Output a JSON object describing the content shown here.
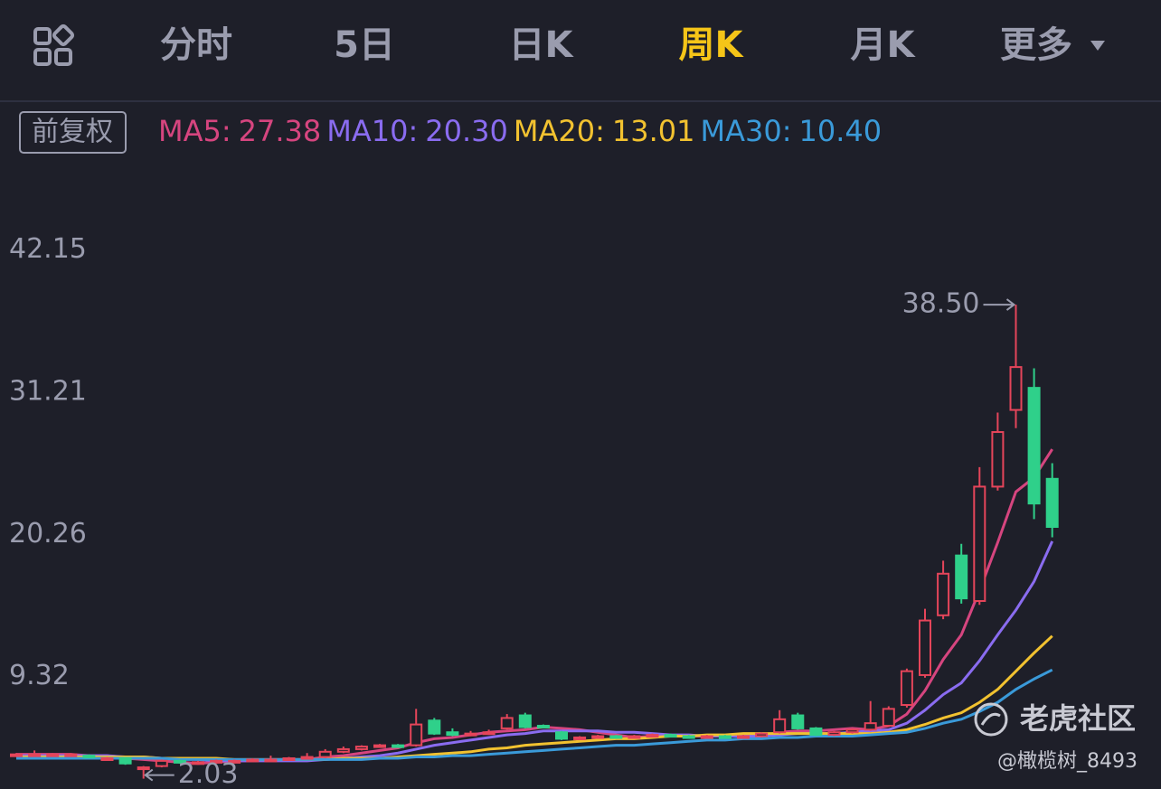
{
  "tabs": [
    "分时",
    "5日",
    "日K",
    "周K",
    "月K",
    "更多"
  ],
  "active_tab": 3,
  "badge": "前复权",
  "watermark": "老虎社区",
  "credit": "@橄榄树_8493",
  "chart_data": {
    "type": "candlestick",
    "ylim": [
      2,
      44
    ],
    "yticks": [
      9.32,
      20.26,
      31.21,
      42.15
    ],
    "up_color": "#e5455a",
    "down_color": "#2fd08a",
    "open": [
      3.8,
      3.9,
      3.9,
      3.8,
      3.8,
      3.6,
      3.6,
      2.8,
      3.0,
      3.4,
      3.3,
      3.3,
      3.4,
      3.4,
      3.5,
      3.5,
      3.6,
      3.7,
      4.1,
      4.3,
      4.5,
      4.6,
      4.6,
      6.5,
      5.6,
      5.4,
      5.5,
      5.9,
      6.9,
      6.1,
      5.6,
      5.1,
      5.2,
      5.3,
      5.2,
      5.3,
      5.4,
      5.3,
      5.2,
      5.3,
      5.2,
      5.3,
      5.6,
      6.9,
      5.9,
      5.4,
      5.6,
      5.8,
      6.1,
      7.7,
      10.0,
      14.6,
      19.2,
      15.7,
      24.5,
      30.4,
      32.1,
      25.1
    ],
    "high": [
      4.0,
      4.2,
      4.0,
      4.0,
      3.9,
      3.7,
      3.7,
      3.0,
      3.5,
      3.5,
      3.4,
      3.5,
      3.5,
      3.6,
      3.8,
      3.7,
      4.0,
      4.3,
      4.5,
      4.6,
      4.7,
      4.7,
      7.4,
      6.7,
      5.9,
      5.7,
      5.8,
      7.0,
      7.1,
      6.2,
      5.7,
      5.3,
      5.4,
      5.4,
      5.4,
      5.5,
      5.5,
      5.4,
      5.4,
      5.4,
      5.4,
      5.6,
      7.3,
      7.1,
      6.0,
      5.7,
      5.9,
      8.0,
      7.6,
      10.5,
      15.1,
      18.8,
      20.1,
      26.0,
      30.2,
      38.5,
      33.6,
      26.3
    ],
    "low": [
      3.7,
      3.8,
      3.8,
      3.7,
      3.6,
      3.5,
      3.1,
      2.03,
      2.9,
      3.2,
      3.2,
      3.2,
      3.3,
      3.3,
      3.4,
      3.4,
      3.5,
      3.6,
      4.0,
      4.2,
      4.4,
      4.4,
      4.5,
      5.4,
      5.3,
      5.3,
      5.4,
      5.8,
      5.9,
      5.9,
      5.0,
      5.0,
      5.1,
      5.1,
      5.1,
      5.2,
      5.2,
      5.1,
      5.1,
      5.1,
      5.1,
      5.2,
      5.5,
      5.8,
      5.3,
      5.3,
      5.5,
      5.7,
      6.0,
      7.5,
      9.8,
      14.3,
      15.5,
      15.4,
      24.2,
      29.0,
      22.0,
      20.6
    ],
    "close": [
      3.9,
      3.9,
      3.9,
      3.9,
      3.7,
      3.6,
      3.2,
      2.9,
      3.4,
      3.3,
      3.3,
      3.4,
      3.4,
      3.5,
      3.5,
      3.6,
      3.7,
      4.1,
      4.3,
      4.5,
      4.6,
      4.5,
      6.2,
      5.5,
      5.4,
      5.5,
      5.6,
      6.7,
      6.0,
      6.0,
      5.1,
      5.2,
      5.3,
      5.2,
      5.3,
      5.4,
      5.3,
      5.2,
      5.3,
      5.2,
      5.3,
      5.5,
      6.6,
      5.9,
      5.4,
      5.6,
      5.8,
      6.3,
      7.4,
      10.3,
      14.2,
      17.8,
      15.9,
      24.5,
      28.7,
      33.7,
      23.2,
      21.4
    ],
    "max_label": "38.50",
    "min_label": "2.03",
    "series": [
      {
        "name": "MA5:",
        "value_label": "27.38",
        "color": "#d6457f",
        "values": [
          3.9,
          3.9,
          3.9,
          3.9,
          3.8,
          3.8,
          3.6,
          3.5,
          3.4,
          3.3,
          3.2,
          3.3,
          3.4,
          3.4,
          3.5,
          3.5,
          3.5,
          3.7,
          3.8,
          4.0,
          4.2,
          4.4,
          4.8,
          5.1,
          5.2,
          5.4,
          5.6,
          5.7,
          5.8,
          6.0,
          5.9,
          5.8,
          5.6,
          5.4,
          5.2,
          5.3,
          5.3,
          5.3,
          5.3,
          5.3,
          5.3,
          5.3,
          5.6,
          5.7,
          5.7,
          5.8,
          5.9,
          5.8,
          6.1,
          7.0,
          8.8,
          11.2,
          13.1,
          16.5,
          20.2,
          24.1,
          25.2,
          27.38
        ]
      },
      {
        "name": "MA10:",
        "value_label": "20.30",
        "color": "#8a6cf0",
        "values": [
          3.8,
          3.8,
          3.8,
          3.8,
          3.8,
          3.8,
          3.7,
          3.7,
          3.6,
          3.6,
          3.5,
          3.4,
          3.4,
          3.4,
          3.4,
          3.4,
          3.4,
          3.5,
          3.6,
          3.7,
          3.8,
          4.0,
          4.3,
          4.6,
          4.8,
          5.0,
          5.2,
          5.4,
          5.5,
          5.7,
          5.7,
          5.7,
          5.7,
          5.6,
          5.6,
          5.5,
          5.4,
          5.4,
          5.3,
          5.3,
          5.3,
          5.3,
          5.4,
          5.5,
          5.5,
          5.5,
          5.6,
          5.7,
          5.8,
          6.3,
          7.3,
          8.5,
          9.4,
          11.1,
          13.1,
          15.0,
          17.2,
          20.3
        ]
      },
      {
        "name": "MA20:",
        "value_label": "13.01",
        "color": "#f2c230",
        "values": [
          3.7,
          3.7,
          3.7,
          3.7,
          3.7,
          3.7,
          3.7,
          3.7,
          3.6,
          3.6,
          3.6,
          3.6,
          3.5,
          3.5,
          3.5,
          3.5,
          3.5,
          3.5,
          3.6,
          3.6,
          3.6,
          3.7,
          3.8,
          3.9,
          4.0,
          4.1,
          4.3,
          4.4,
          4.6,
          4.7,
          4.8,
          4.9,
          5.0,
          5.1,
          5.1,
          5.2,
          5.3,
          5.3,
          5.4,
          5.4,
          5.5,
          5.5,
          5.5,
          5.5,
          5.5,
          5.5,
          5.5,
          5.5,
          5.6,
          5.8,
          6.2,
          6.7,
          7.1,
          7.9,
          8.9,
          10.3,
          11.7,
          13.01
        ]
      },
      {
        "name": "MA30:",
        "value_label": "10.40",
        "color": "#3a9ad9",
        "values": [
          3.6,
          3.6,
          3.6,
          3.6,
          3.6,
          3.6,
          3.6,
          3.6,
          3.6,
          3.5,
          3.5,
          3.5,
          3.5,
          3.5,
          3.5,
          3.5,
          3.5,
          3.5,
          3.5,
          3.5,
          3.6,
          3.6,
          3.7,
          3.7,
          3.8,
          3.8,
          3.9,
          4.0,
          4.1,
          4.2,
          4.3,
          4.4,
          4.5,
          4.6,
          4.6,
          4.7,
          4.8,
          4.9,
          5.0,
          5.0,
          5.1,
          5.1,
          5.2,
          5.2,
          5.3,
          5.3,
          5.3,
          5.4,
          5.5,
          5.6,
          5.9,
          6.3,
          6.6,
          7.2,
          7.9,
          8.9,
          9.7,
          10.4
        ]
      }
    ]
  }
}
